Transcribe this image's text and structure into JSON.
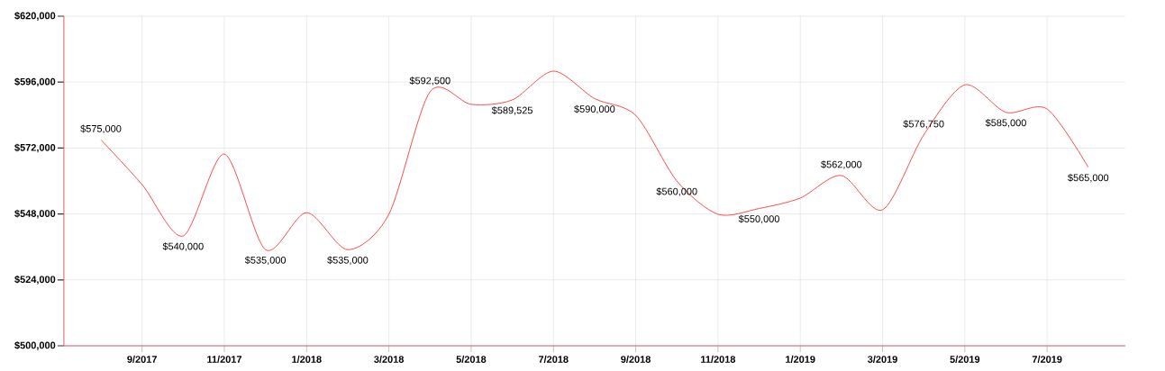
{
  "chart_data": {
    "type": "line",
    "categories": [
      null,
      "9/2017",
      null,
      "11/2017",
      null,
      "1/2018",
      null,
      "3/2018",
      null,
      "5/2018",
      null,
      "7/2018",
      null,
      "9/2018",
      null,
      "11/2018",
      null,
      "1/2019",
      null,
      "3/2019",
      null,
      "5/2019",
      null,
      "7/2019",
      null
    ],
    "values": [
      575000,
      558700,
      540000,
      569800,
      535000,
      548500,
      535000,
      547900,
      592500,
      587900,
      589525,
      600000,
      590000,
      583900,
      560000,
      547900,
      550000,
      553800,
      562000,
      549500,
      576750,
      595000,
      585000,
      586200,
      565000
    ],
    "value_labels": [
      "$575,000",
      null,
      "$540,000",
      null,
      "$535,000",
      null,
      "$535,000",
      null,
      "$592,500",
      null,
      "$589,525",
      null,
      "$590,000",
      null,
      "$560,000",
      null,
      "$550,000",
      null,
      "$562,000",
      null,
      "$576,750",
      null,
      "$585,000",
      null,
      "$565,000"
    ],
    "color": "#ff4a4a",
    "ylim": [
      500000,
      620000
    ],
    "yticks": [
      {
        "value": 500000,
        "label": "$500,000"
      },
      {
        "value": 524000,
        "label": "$524,000"
      },
      {
        "value": 548000,
        "label": "$548,000"
      },
      {
        "value": 572000,
        "label": "$572,000"
      },
      {
        "value": 596000,
        "label": "$596,000"
      },
      {
        "value": 620000,
        "label": "$620,000"
      }
    ],
    "grid": true,
    "marker": "none"
  }
}
